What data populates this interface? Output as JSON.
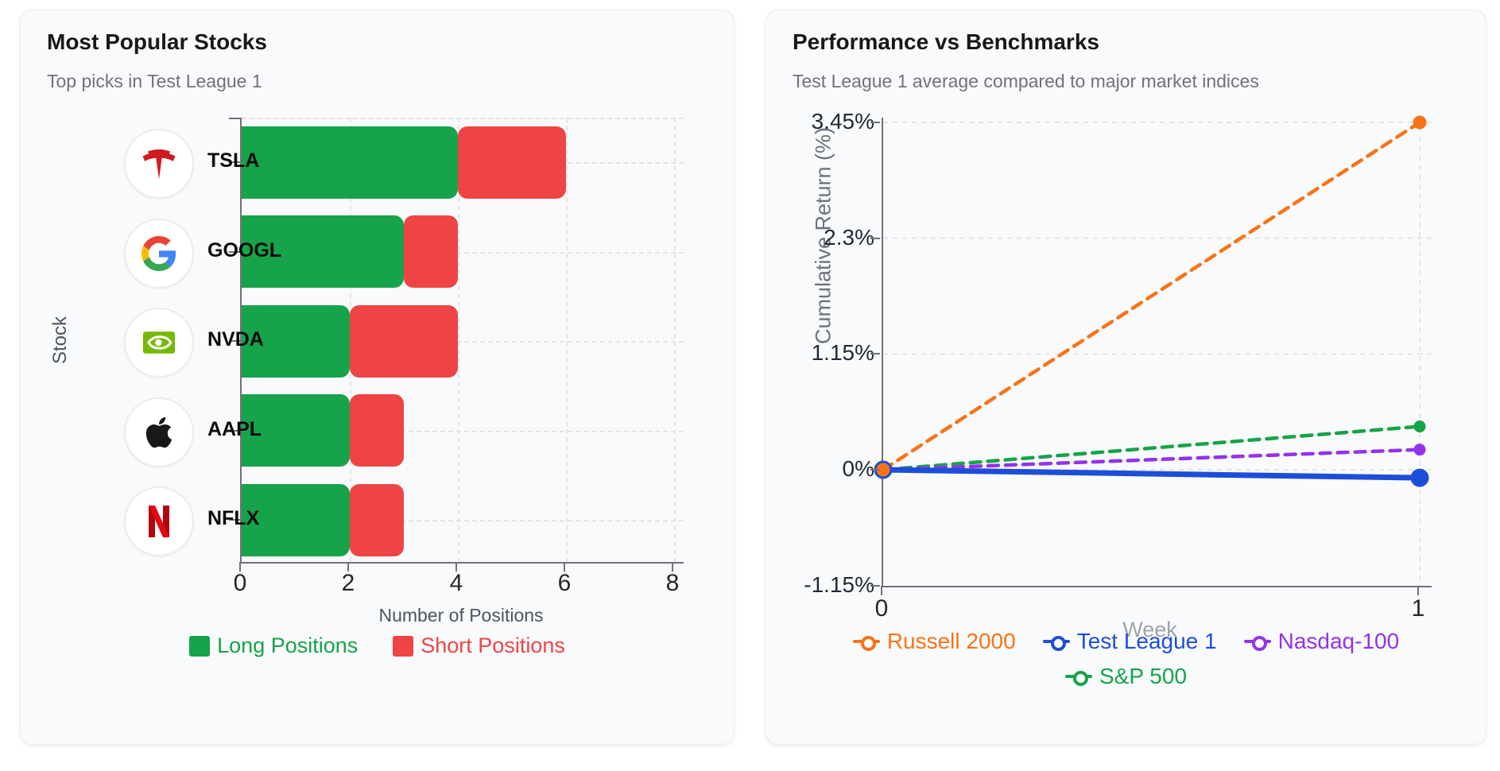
{
  "chart_data": [
    {
      "type": "bar",
      "orientation": "horizontal",
      "stacked": true,
      "title": "Most Popular Stocks",
      "subtitle": "Top picks in Test League 1",
      "categories": [
        "TSLA",
        "GOOGL",
        "NVDA",
        "AAPL",
        "NFLX"
      ],
      "icons": [
        "tesla-logo",
        "google-logo",
        "nvidia-logo",
        "apple-logo",
        "netflix-logo"
      ],
      "series": [
        {
          "name": "Long Positions",
          "color": "#16a34a",
          "values": [
            4,
            3,
            2,
            2,
            2
          ]
        },
        {
          "name": "Short Positions",
          "color": "#ef4444",
          "values": [
            2,
            1,
            2,
            1,
            1
          ]
        }
      ],
      "xlabel": "Number of Positions",
      "ylabel": "Stock",
      "xlim": [
        0,
        8
      ],
      "x_ticks": [
        0,
        2,
        4,
        6,
        8
      ],
      "grid": true,
      "legend_position": "bottom"
    },
    {
      "type": "line",
      "title": "Performance vs Benchmarks",
      "subtitle": "Test League 1 average compared to major market indices",
      "x": [
        0,
        1
      ],
      "series": [
        {
          "name": "Russell 2000",
          "color": "#f97316",
          "style": "dashed",
          "values": [
            0,
            3.45
          ]
        },
        {
          "name": "Test League 1",
          "color": "#1d4ed8",
          "style": "solid",
          "values": [
            0,
            -0.08
          ]
        },
        {
          "name": "Nasdaq-100",
          "color": "#9333ea",
          "style": "dashed",
          "values": [
            0,
            0.2
          ]
        },
        {
          "name": "S&P 500",
          "color": "#16a34a",
          "style": "dashed",
          "values": [
            0,
            0.43
          ]
        }
      ],
      "xlabel": "Week",
      "ylabel": "Cumulative Return (%)",
      "ylim": [
        -1.15,
        3.45
      ],
      "y_ticks": [
        3.45,
        2.3,
        1.15,
        0,
        -1.15
      ],
      "y_tick_labels": [
        "3.45%",
        "2.3%",
        "1.15%",
        "0%",
        "-1.15%"
      ],
      "x_ticks": [
        "0",
        "1"
      ],
      "grid": true,
      "legend_rows": [
        [
          "Russell 2000",
          "Test League 1",
          "Nasdaq-100"
        ],
        [
          "S&P 500"
        ]
      ]
    }
  ]
}
